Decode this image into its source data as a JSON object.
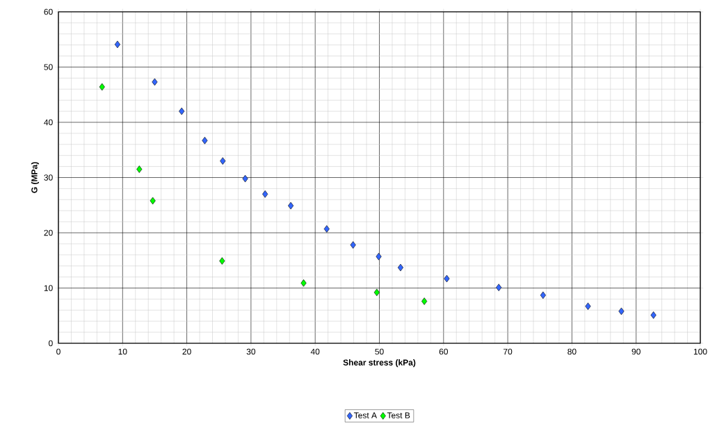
{
  "chart_data": {
    "type": "scatter",
    "xlabel": "Shear stress (kPa)",
    "ylabel": "G (MPa)",
    "xlim": [
      0,
      100
    ],
    "ylim": [
      0,
      60
    ],
    "xticks": [
      0,
      10,
      20,
      30,
      40,
      50,
      60,
      70,
      80,
      90,
      100
    ],
    "yticks": [
      0,
      10,
      20,
      30,
      40,
      50,
      60
    ],
    "grid": true,
    "legend": "bottom",
    "marker": "diamond",
    "series": [
      {
        "name": "Test A",
        "color": "#3366ff",
        "x": [
          9.2,
          15.0,
          19.2,
          22.8,
          25.6,
          29.1,
          32.2,
          36.2,
          41.8,
          45.9,
          49.9,
          53.3,
          60.5,
          68.6,
          75.5,
          82.5,
          87.7,
          92.7
        ],
        "values": [
          54.1,
          47.3,
          42.0,
          36.7,
          33.0,
          29.8,
          27.0,
          24.9,
          20.7,
          17.8,
          15.7,
          13.7,
          11.7,
          10.1,
          8.7,
          6.7,
          5.8,
          5.1
        ]
      },
      {
        "name": "Test B",
        "color": "#00ff00",
        "x": [
          6.8,
          12.6,
          14.7,
          25.5,
          38.2,
          49.6,
          57.0
        ],
        "values": [
          46.4,
          31.5,
          25.8,
          14.9,
          10.9,
          9.2,
          7.6
        ]
      }
    ]
  }
}
